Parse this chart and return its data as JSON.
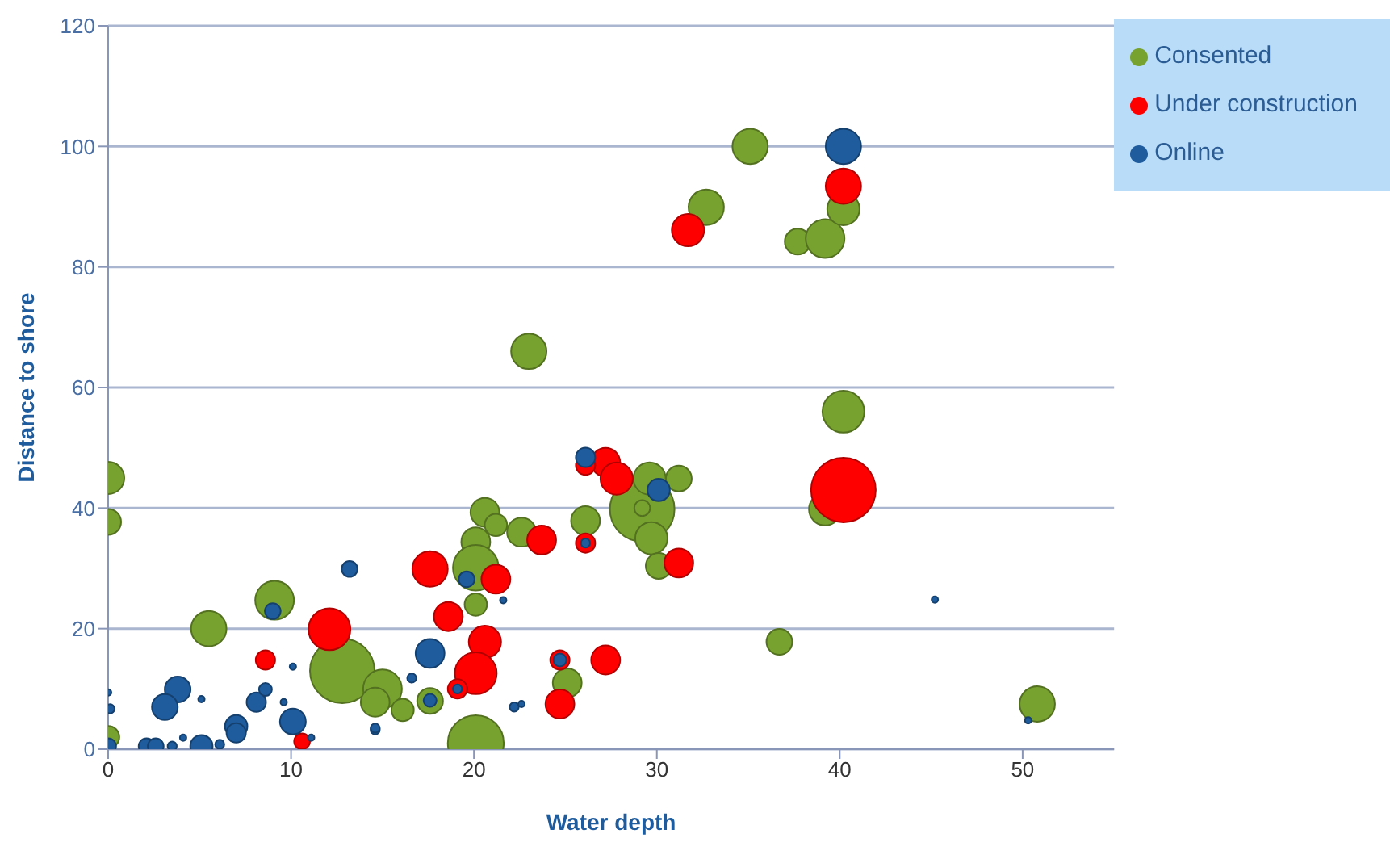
{
  "chart_data": {
    "type": "bubble",
    "xlabel": "Water depth",
    "ylabel": "Distance to shore",
    "xlim": [
      0,
      55
    ],
    "xticks": [
      0,
      10,
      20,
      30,
      40,
      50
    ],
    "ylim": [
      0,
      120
    ],
    "yticks": [
      0,
      20,
      40,
      60,
      80,
      100,
      120
    ],
    "grid": "y",
    "legend": "top right",
    "marker": "circle",
    "series": [
      {
        "name": "Consented",
        "color": "#77a22f",
        "x": [
          0,
          0,
          0,
          5.5,
          9.1,
          12.8,
          15,
          14.6,
          16.1,
          17.6,
          20.6,
          21.2,
          20.1,
          20.1,
          20.1,
          22.6,
          26.1,
          29.2,
          29.6,
          31.2,
          29.2,
          29.7,
          30.1,
          25.1,
          20.1,
          23,
          35.1,
          32.7,
          37.7,
          39.2,
          40.2,
          40.2,
          39.2,
          36.7,
          50.8
        ],
        "values": [
          45,
          37.7,
          2,
          20,
          24.7,
          13,
          10,
          7.8,
          6.5,
          8,
          39.3,
          37.2,
          34.4,
          30.1,
          24,
          36,
          37.9,
          39.8,
          44.9,
          44.9,
          40,
          35,
          30.4,
          11,
          1,
          66,
          100,
          89.9,
          84.2,
          84.7,
          89.6,
          56,
          39.8,
          17.8,
          7.5
        ],
        "sizes": [
          0.25,
          0.16,
          0.12,
          0.3,
          0.36,
          1,
          0.36,
          0.2,
          0.12,
          0.16,
          0.2,
          0.12,
          0.2,
          0.5,
          0.12,
          0.2,
          0.2,
          1,
          0.25,
          0.16,
          0.06,
          0.25,
          0.16,
          0.2,
          0.75,
          0.3,
          0.3,
          0.3,
          0.16,
          0.36,
          0.25,
          0.42,
          0.25,
          0.16,
          0.3
        ]
      },
      {
        "name": "Under construction",
        "color": "#ff0000",
        "x": [
          12.1,
          8.6,
          10.6,
          17.6,
          18.6,
          21.2,
          20.6,
          20.1,
          19.1,
          23.7,
          24.7,
          24.7,
          27.2,
          26.1,
          27.2,
          27.8,
          26.1,
          31.2,
          31.7,
          40.2,
          40.2
        ],
        "values": [
          19.9,
          14.8,
          1.3,
          29.9,
          22,
          28.2,
          17.8,
          12.6,
          10,
          34.7,
          14.8,
          7.5,
          14.8,
          34.2,
          47.6,
          44.9,
          47.1,
          30.9,
          86.1,
          93.4,
          43
        ],
        "sizes": [
          0.42,
          0.09,
          0.06,
          0.3,
          0.2,
          0.2,
          0.25,
          0.42,
          0.09,
          0.2,
          0.09,
          0.2,
          0.2,
          0.09,
          0.2,
          0.25,
          0.09,
          0.2,
          0.25,
          0.3,
          1
        ]
      },
      {
        "name": "Online",
        "color": "#1f5c9e",
        "x": [
          13.2,
          9,
          3.8,
          3.1,
          8.1,
          8.6,
          10.1,
          7,
          7,
          5.1,
          2.1,
          2.6,
          3.5,
          6.1,
          0.1,
          0,
          14.6,
          10.1,
          9.6,
          5.1,
          4.1,
          11.1,
          0,
          17.6,
          19.6,
          16.6,
          17.6,
          19.1,
          14.6,
          22.2,
          22.6,
          21.6,
          24.7,
          26.1,
          26.1,
          30.1,
          40.2,
          50.3,
          45.2
        ],
        "values": [
          29.9,
          22.9,
          9.9,
          7,
          7.8,
          9.9,
          4.6,
          3.8,
          2.7,
          0.5,
          0.5,
          0.5,
          0.5,
          0.8,
          6.7,
          0.5,
          3.2,
          13.7,
          7.8,
          8.3,
          1.9,
          1.9,
          9.4,
          15.9,
          28.2,
          11.8,
          8.1,
          10,
          3.5,
          7,
          7.5,
          24.7,
          14.8,
          34.2,
          48.4,
          43,
          100,
          4.8,
          24.8
        ],
        "sizes": [
          0.06,
          0.06,
          0.16,
          0.16,
          0.09,
          0.04,
          0.16,
          0.12,
          0.09,
          0.12,
          0.06,
          0.06,
          0.02,
          0.02,
          0.02,
          0.06,
          0.02,
          0.01,
          0.01,
          0.01,
          0.01,
          0.01,
          0.01,
          0.2,
          0.06,
          0.02,
          0.04,
          0.02,
          0.02,
          0.02,
          0.01,
          0.01,
          0.04,
          0.02,
          0.09,
          0.12,
          0.3,
          0.01,
          0.01
        ]
      }
    ]
  }
}
